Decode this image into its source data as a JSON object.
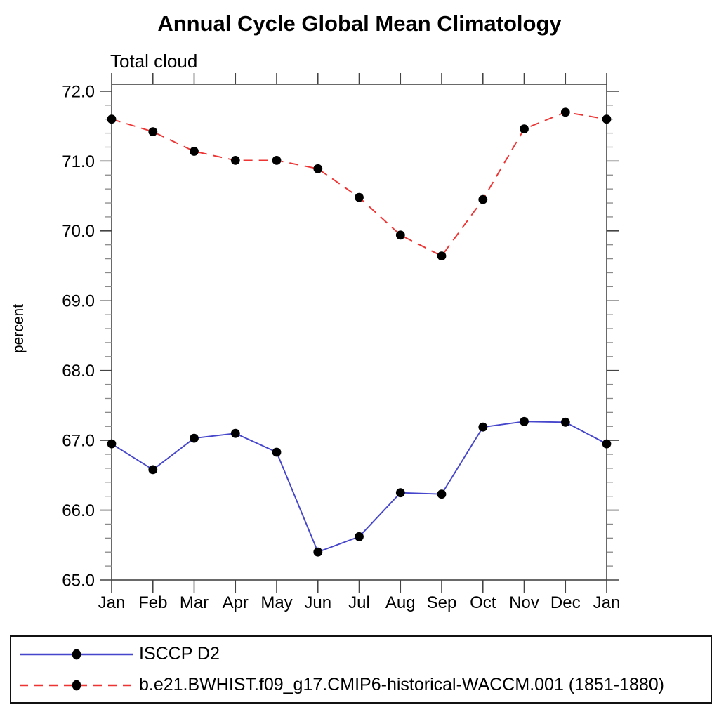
{
  "header": {
    "title": "Annual Cycle Global Mean Climatology",
    "subtitle": "Total cloud"
  },
  "chart_data": {
    "type": "line",
    "title": "Annual Cycle Global Mean Climatology",
    "subtitle": "Total cloud",
    "xlabel": "",
    "ylabel": "percent",
    "categories": [
      "Jan",
      "Feb",
      "Mar",
      "Apr",
      "May",
      "Jun",
      "Jul",
      "Aug",
      "Sep",
      "Oct",
      "Nov",
      "Dec",
      "Jan"
    ],
    "ylim": [
      65.0,
      72.1
    ],
    "ytick_step": 1.0,
    "yminor_step": 0.2,
    "ytick_labels": [
      "65.0",
      "66.0",
      "67.0",
      "68.0",
      "69.0",
      "70.0",
      "71.0",
      "72.0"
    ],
    "grid": false,
    "legend_position": "bottom",
    "frame_color": "#444444",
    "minor_tick_color": "#8a8a8a",
    "marker_color": "#000000",
    "series": [
      {
        "name": "ISCCP D2",
        "color": "#4646cc",
        "style": "solid",
        "marker": "circle",
        "values": [
          66.95,
          66.58,
          67.03,
          67.1,
          66.83,
          65.4,
          65.62,
          66.25,
          66.23,
          67.19,
          67.27,
          67.26,
          66.95
        ]
      },
      {
        "name": "b.e21.BWHIST.f09_g17.CMIP6-historical-WACCM.001 (1851-1880)",
        "color": "#ee3333",
        "style": "dashed",
        "marker": "circle",
        "values": [
          71.6,
          71.42,
          71.14,
          71.01,
          71.01,
          70.89,
          70.48,
          69.94,
          69.64,
          70.45,
          71.46,
          71.7,
          71.6
        ]
      }
    ]
  }
}
